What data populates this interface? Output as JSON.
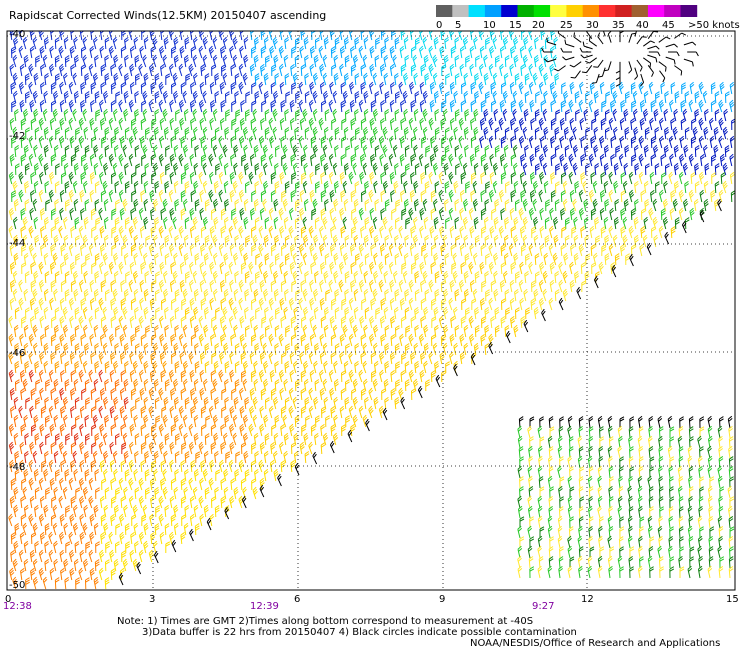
{
  "title": "Rapidscat Corrected Winds(12.5KM) 20150407 ascending",
  "legend": {
    "labels": [
      "0",
      "5",
      "10",
      "15",
      "20",
      "25",
      "30",
      "35",
      "40",
      "45",
      ">50 knots"
    ],
    "colors": [
      "#606060",
      "#c0c0c0",
      "#00e0ff",
      "#00a0ff",
      "#0000d0",
      "#00b000",
      "#00e000",
      "#ffff40",
      "#ffd000",
      "#ff9000",
      "#ff3030",
      "#d02020",
      "#a06030",
      "#ff00ff",
      "#c000c0",
      "#500080"
    ]
  },
  "map": {
    "lat_labels": [
      "-40",
      "-42",
      "-44",
      "-46",
      "-48",
      "-50"
    ],
    "lon_labels": [
      "0",
      "3",
      "6",
      "9",
      "12",
      "15"
    ],
    "time_labels": [
      "12:38",
      "12:39",
      "9:27"
    ],
    "time_color": "#8000a0"
  },
  "notes": {
    "line1": "Note: 1) Times are GMT 2)Times along bottom correspond to measurement at -40S",
    "line2": "3)Data buffer is 22 hrs from 20150407 4) Black circles indicate possible contamination",
    "line3": "NOAA/NESDIS/Office of Research and Applications"
  }
}
